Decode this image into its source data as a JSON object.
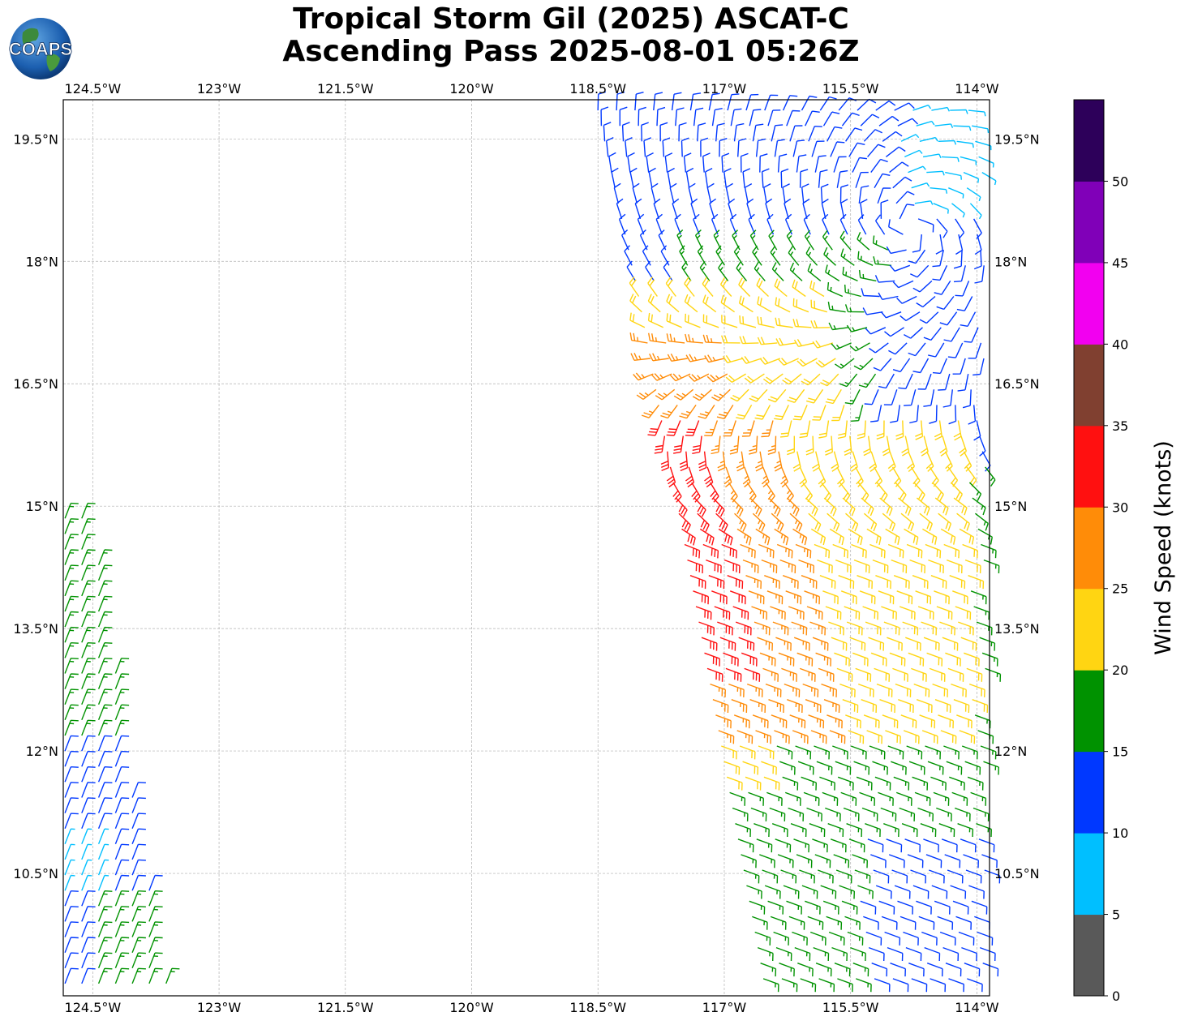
{
  "title": {
    "line1": "Tropical Storm Gil (2025) ASCAT-C",
    "line2": "Ascending Pass 2025-08-01 05:26Z"
  },
  "logo": {
    "text": "COAPS",
    "icon": "globe-logo"
  },
  "map": {
    "lon_range": [
      -124.85,
      -113.85
    ],
    "lat_range": [
      9.0,
      19.98
    ],
    "lon_ticks": [
      "124.5°W",
      "123°W",
      "121.5°W",
      "120°W",
      "118.5°W",
      "117°W",
      "115.5°W",
      "114°W"
    ],
    "lat_ticks": [
      "10.5°N",
      "12°N",
      "13.5°N",
      "15°N",
      "16.5°N",
      "18°N",
      "19.5°N"
    ],
    "lon_tick_values": [
      -124.5,
      -123.0,
      -121.5,
      -120.0,
      -118.5,
      -117.0,
      -115.5,
      -114.0
    ],
    "lat_tick_values": [
      10.5,
      12.0,
      13.5,
      15.0,
      16.5,
      18.0,
      19.5
    ],
    "grid": true,
    "grid_style": "dashed"
  },
  "colorbar": {
    "label": "Wind Speed (knots)",
    "ticks": [
      "0",
      "5",
      "10",
      "15",
      "20",
      "25",
      "30",
      "35",
      "40",
      "45",
      "50"
    ],
    "colors": [
      "#595959",
      "#00bfff",
      "#0038ff",
      "#009200",
      "#ffd512",
      "#ff8c08",
      "#ff1010",
      "#804030",
      "#f200f0",
      "#8000b8",
      "#2d005a"
    ]
  },
  "barbs": {
    "units": "knots",
    "swath_east": {
      "west_edge": [
        [
          -118.5,
          19.85
        ],
        [
          -118.0,
          17.5
        ],
        [
          -117.2,
          13.0
        ],
        [
          -116.5,
          9.0
        ]
      ],
      "east_edge": [
        -113.85,
        19.98,
        9.0
      ],
      "circulation_center": [
        -114.8,
        18.4
      ]
    },
    "swath_west": {
      "east_edge": [
        [
          -124.5,
          14.9
        ],
        [
          -124.15,
          12.5
        ],
        [
          -123.95,
          11.0
        ],
        [
          -123.6,
          9.0
        ]
      ],
      "west_edge": -124.85
    },
    "speed_zones_knots": [
      {
        "region": "core west edge 13-16.2N",
        "speed": 32
      },
      {
        "region": "core orange band",
        "speed": 27
      },
      {
        "region": "core yellow band",
        "speed": 22
      },
      {
        "region": "southeast quadrant",
        "speed": 17
      },
      {
        "region": "northern swath",
        "speed": 12
      },
      {
        "region": "northeast corner",
        "speed": 7
      }
    ]
  }
}
